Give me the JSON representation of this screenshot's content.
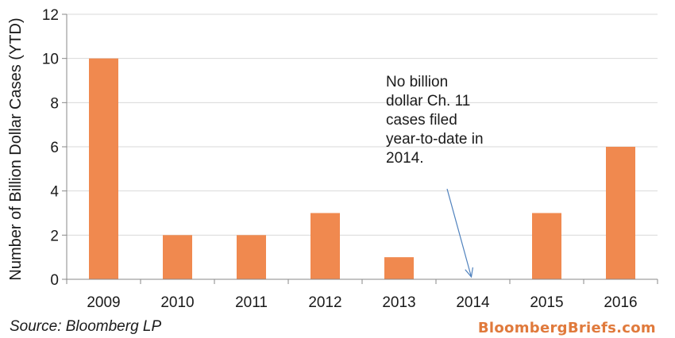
{
  "chart_data": {
    "type": "bar",
    "categories": [
      "2009",
      "2010",
      "2011",
      "2012",
      "2013",
      "2014",
      "2015",
      "2016"
    ],
    "values": [
      10,
      2,
      2,
      3,
      1,
      0,
      3,
      6
    ],
    "ylabel": "Number of Billion Dollar Cases (YTD)",
    "ylim": [
      0,
      12
    ],
    "yticks": [
      0,
      2,
      4,
      6,
      8,
      10,
      12
    ],
    "grid": true,
    "bar_color": "#f0894f",
    "annotation": {
      "lines": [
        "No billion",
        "dollar Ch. 11",
        "cases filed",
        "year-to-date in",
        "2014."
      ],
      "points_to": "2014",
      "arrow_color": "#4f81bd"
    }
  },
  "footer": {
    "source": "Source: Bloomberg LP",
    "brand": "BloombergBriefs.com"
  }
}
